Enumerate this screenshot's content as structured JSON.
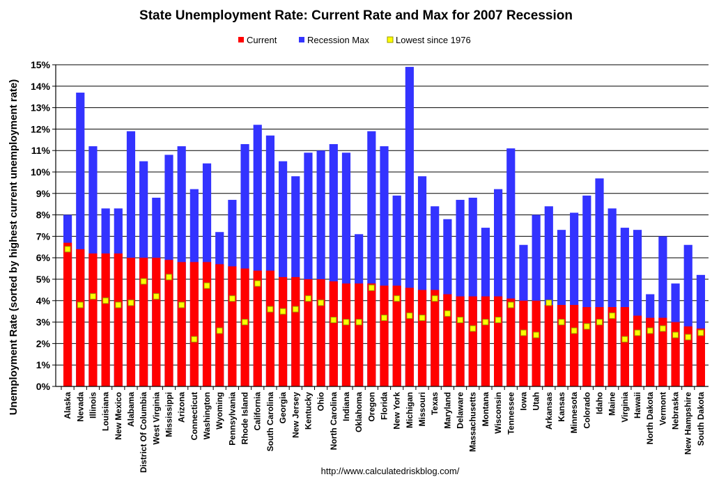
{
  "chart_data": {
    "type": "bar",
    "title": "State Unemployment Rate: Current Rate and Max for 2007 Recession",
    "ylabel": "Unemployment Rate (sorted by highest current unemployment rate)",
    "xlabel": "",
    "footer": "http://www.calculatedriskblog.com/",
    "ylim": [
      0,
      15
    ],
    "yticks": [
      "0%",
      "1%",
      "2%",
      "3%",
      "4%",
      "5%",
      "6%",
      "7%",
      "8%",
      "9%",
      "10%",
      "11%",
      "12%",
      "13%",
      "14%",
      "15%"
    ],
    "legend": {
      "placement": "top-center",
      "items": [
        {
          "label": "Current",
          "color": "#ff0000",
          "shape": "square"
        },
        {
          "label": "Recession Max",
          "color": "#3333ff",
          "shape": "square"
        },
        {
          "label": "Lowest since 1976",
          "color": "#ffff00",
          "shape": "marker"
        }
      ]
    },
    "colors": {
      "current": "#ff0000",
      "max": "#3333ff",
      "lowest": "#ffff00",
      "lowest_border": "#999900",
      "grid": "#000000"
    },
    "categories": [
      "Alaska",
      "Nevada",
      "Illinois",
      "Louisiana",
      "New Mexico",
      "Alabama",
      "District Of Columbia",
      "West Virginia",
      "Mississippi",
      "Arizona",
      "Connecticut",
      "Washington",
      "Wyoming",
      "Pennsylvania",
      "Rhode Island",
      "California",
      "South Carolina",
      "Georgia",
      "New Jersey",
      "Kentucky",
      "Ohio",
      "North Carolina",
      "Indiana",
      "Oklahoma",
      "Oregon",
      "Florida",
      "New York",
      "Michigan",
      "Missouri",
      "Texas",
      "Maryland",
      "Delaware",
      "Massachusetts",
      "Montana",
      "Wisconsin",
      "Tennessee",
      "Iowa",
      "Utah",
      "Arkansas",
      "Kansas",
      "Minnesota",
      "Colorado",
      "Idaho",
      "Maine",
      "Virginia",
      "Hawaii",
      "North Dakota",
      "Vermont",
      "Nebraska",
      "New Hampshire",
      "South Dakota"
    ],
    "series": [
      {
        "name": "Current",
        "values": [
          6.7,
          6.4,
          6.2,
          6.2,
          6.2,
          6.0,
          6.0,
          6.0,
          5.9,
          5.8,
          5.8,
          5.8,
          5.7,
          5.6,
          5.5,
          5.4,
          5.4,
          5.1,
          5.1,
          5.0,
          5.0,
          4.9,
          4.8,
          4.8,
          4.8,
          4.7,
          4.7,
          4.6,
          4.5,
          4.5,
          4.3,
          4.2,
          4.2,
          4.2,
          4.2,
          4.1,
          4.0,
          4.0,
          3.8,
          3.8,
          3.8,
          3.7,
          3.7,
          3.7,
          3.7,
          3.3,
          3.2,
          3.2,
          3.0,
          2.8,
          2.7
        ]
      },
      {
        "name": "Recession Max",
        "values": [
          8.0,
          13.7,
          11.2,
          8.3,
          8.3,
          11.9,
          10.5,
          8.8,
          10.8,
          11.2,
          9.2,
          10.4,
          7.2,
          8.7,
          11.3,
          12.2,
          11.7,
          10.5,
          9.8,
          10.9,
          11.0,
          11.3,
          10.9,
          7.1,
          11.9,
          11.2,
          8.9,
          14.9,
          9.8,
          8.4,
          7.8,
          8.7,
          8.8,
          7.4,
          9.2,
          11.1,
          6.6,
          8.0,
          8.4,
          7.3,
          8.1,
          8.9,
          9.7,
          8.3,
          7.4,
          7.3,
          4.3,
          7.0,
          4.8,
          6.6,
          5.2
        ]
      },
      {
        "name": "Lowest since 1976",
        "values": [
          6.4,
          3.8,
          4.2,
          4.0,
          3.8,
          3.9,
          4.9,
          4.2,
          5.1,
          3.8,
          2.2,
          4.7,
          2.6,
          4.1,
          3.0,
          4.8,
          3.6,
          3.5,
          3.6,
          4.1,
          3.9,
          3.1,
          3.0,
          3.0,
          4.6,
          3.2,
          4.1,
          3.3,
          3.2,
          4.1,
          3.4,
          3.1,
          2.7,
          3.0,
          3.1,
          3.8,
          2.5,
          2.4,
          3.9,
          3.0,
          2.6,
          2.8,
          3.0,
          3.3,
          2.2,
          2.5,
          2.6,
          2.7,
          2.4,
          2.3,
          2.5
        ]
      }
    ]
  }
}
